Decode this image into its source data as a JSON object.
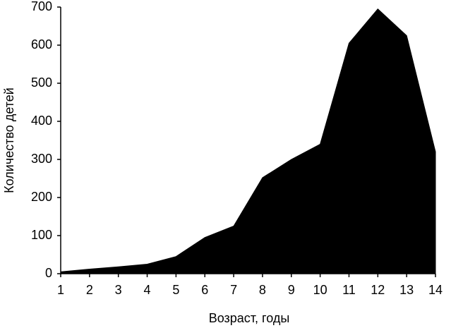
{
  "chart_data": {
    "type": "area",
    "x_label": "Возраст, годы",
    "y_label": "Количество детей",
    "x": [
      1,
      2,
      3,
      4,
      5,
      6,
      7,
      8,
      9,
      10,
      11,
      12,
      13,
      14
    ],
    "values": [
      5,
      12,
      18,
      25,
      45,
      95,
      125,
      252,
      300,
      340,
      605,
      695,
      625,
      320
    ],
    "color": "#000000",
    "xlim": [
      1,
      14
    ],
    "xticks": [
      1,
      2,
      3,
      4,
      5,
      6,
      7,
      8,
      9,
      10,
      11,
      12,
      13,
      14
    ],
    "ylim": [
      0,
      700
    ],
    "yticks": [
      0,
      100,
      200,
      300,
      400,
      500,
      600,
      700
    ],
    "grid": false
  }
}
